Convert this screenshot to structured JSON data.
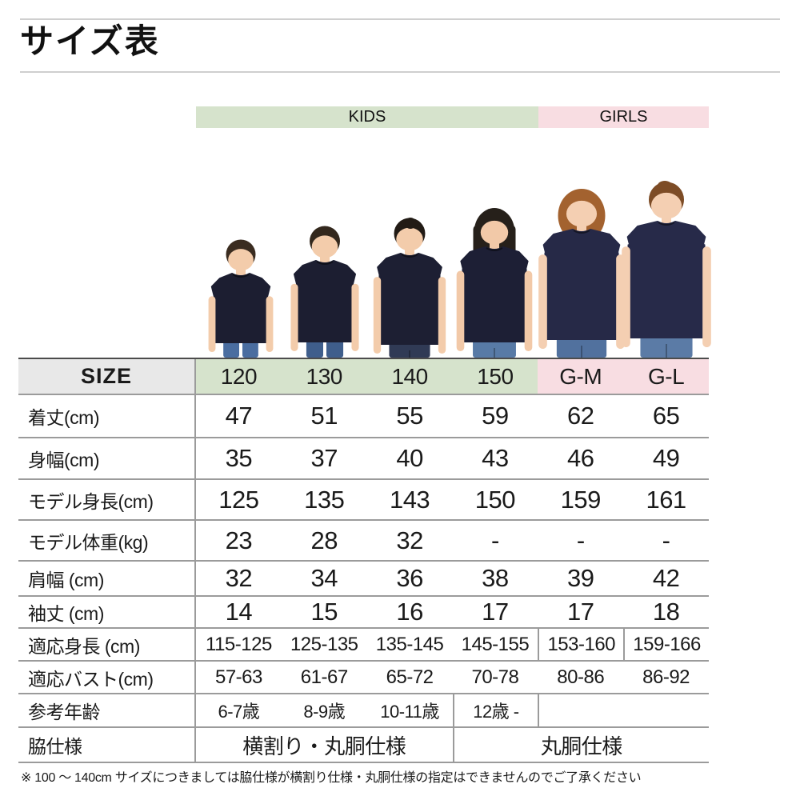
{
  "page": {
    "title": "サイズ表"
  },
  "header": {
    "groups": [
      {
        "label": "KIDS",
        "span": 4,
        "color": "#d6e3cc"
      },
      {
        "label": "GIRLS",
        "span": 2,
        "color": "#f8dde2"
      }
    ]
  },
  "models": [
    {
      "size": "120",
      "person": "boy",
      "description": "boy model in navy t-shirt and jeans"
    },
    {
      "size": "130",
      "person": "boy",
      "description": "boy model in navy t-shirt and jeans"
    },
    {
      "size": "140",
      "person": "girl",
      "description": "girl model with hair bun in navy t-shirt"
    },
    {
      "size": "150",
      "person": "girl",
      "description": "girl model with long hair in navy t-shirt"
    },
    {
      "size": "G-M",
      "person": "woman",
      "description": "woman model with bob hair in navy t-shirt"
    },
    {
      "size": "G-L",
      "person": "woman",
      "description": "woman model with tied hair in navy t-shirt"
    }
  ],
  "table": {
    "size_label": "SIZE",
    "columns": [
      "120",
      "130",
      "140",
      "150",
      "G-M",
      "G-L"
    ],
    "rows": [
      {
        "label": "着丈(cm)",
        "values": [
          "47",
          "51",
          "55",
          "59",
          "62",
          "65"
        ]
      },
      {
        "label": "身幅(cm)",
        "values": [
          "35",
          "37",
          "40",
          "43",
          "46",
          "49"
        ]
      },
      {
        "label": "モデル身長(cm)",
        "values": [
          "125",
          "135",
          "143",
          "150",
          "159",
          "161"
        ]
      },
      {
        "label": "モデル体重(kg)",
        "values": [
          "23",
          "28",
          "32",
          "-",
          "-",
          "-"
        ]
      },
      {
        "label": "肩幅 (cm)",
        "values": [
          "32",
          "34",
          "36",
          "38",
          "39",
          "42"
        ]
      },
      {
        "label": "袖丈 (cm)",
        "values": [
          "14",
          "15",
          "16",
          "17",
          "17",
          "18"
        ]
      },
      {
        "label": "適応身長 (cm)",
        "values": [
          "115-125",
          "125-135",
          "135-145",
          "145-155",
          "153-160",
          "159-166"
        ],
        "dividers": [
          4,
          5
        ]
      },
      {
        "label": "適応バスト(cm)",
        "values": [
          "57-63",
          "61-67",
          "65-72",
          "70-78",
          "80-86",
          "86-92"
        ]
      },
      {
        "label": "参考年齢",
        "values": [
          "6-7歳",
          "8-9歳",
          "10-11歳",
          "12歳 -",
          "",
          ""
        ],
        "dividers": [
          3,
          4
        ]
      },
      {
        "label": "脇仕様",
        "cells": [
          {
            "value": "横割り・丸胴仕様",
            "span": 3
          },
          {
            "value": "丸胴仕様",
            "span": 3,
            "divider": true
          }
        ]
      }
    ]
  },
  "footnote": "※ 100 ～ 140cm サイズにつきましては脇仕様が横割り仕様・丸胴仕様の指定はできませんのでご了承ください",
  "colors": {
    "kids_band": "#d6e3cc",
    "girls_band": "#f8dde2",
    "size_cell": "#e8e8e8",
    "grid_line": "#9b9b9b",
    "shirt_navy": "#1d1f33"
  }
}
